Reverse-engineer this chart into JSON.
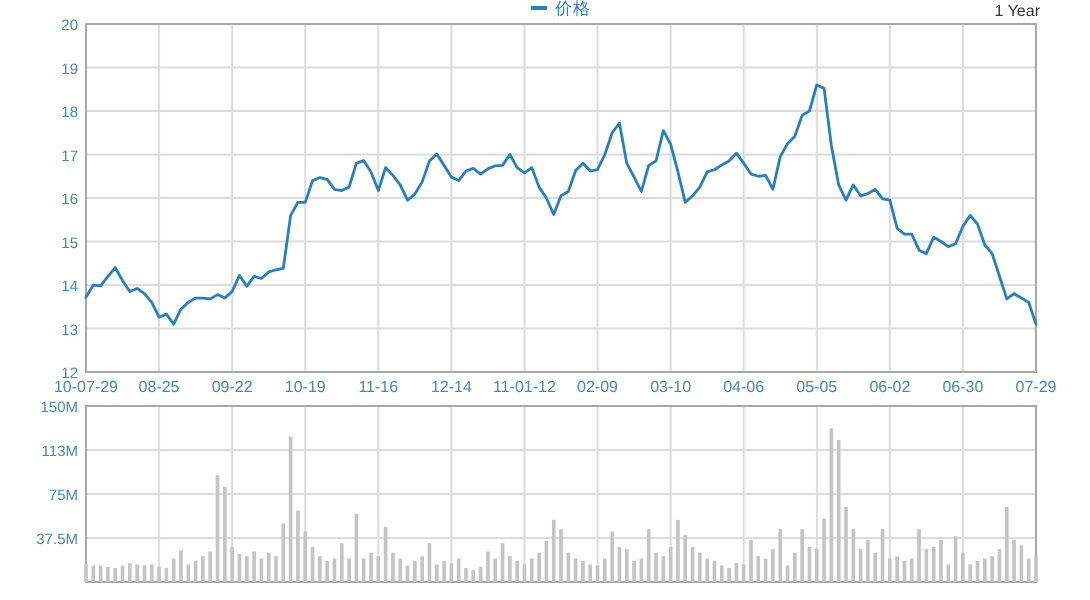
{
  "chart_data": [
    {
      "type": "line",
      "annotations": [
        "1 Year"
      ],
      "legend": "top",
      "grid": true,
      "ylim": [
        12,
        20
      ],
      "yticks": [
        12,
        13,
        14,
        15,
        16,
        17,
        18,
        19,
        20
      ],
      "categories": [
        "10-07-29",
        null,
        null,
        null,
        null,
        null,
        null,
        null,
        null,
        null,
        "08-25",
        null,
        null,
        null,
        null,
        null,
        null,
        null,
        null,
        null,
        "09-22",
        null,
        null,
        null,
        null,
        null,
        null,
        null,
        null,
        null,
        "10-19",
        null,
        null,
        null,
        null,
        null,
        null,
        null,
        null,
        null,
        "11-16",
        null,
        null,
        null,
        null,
        null,
        null,
        null,
        null,
        null,
        "12-14",
        null,
        null,
        null,
        null,
        null,
        null,
        null,
        null,
        null,
        "11-01-12",
        null,
        null,
        null,
        null,
        null,
        null,
        null,
        null,
        null,
        "02-09",
        null,
        null,
        null,
        null,
        null,
        null,
        null,
        null,
        null,
        "03-10",
        null,
        null,
        null,
        null,
        null,
        null,
        null,
        null,
        null,
        "04-06",
        null,
        null,
        null,
        null,
        null,
        null,
        null,
        null,
        null,
        "05-05",
        null,
        null,
        null,
        null,
        null,
        null,
        null,
        null,
        null,
        "06-02",
        null,
        null,
        null,
        null,
        null,
        null,
        null,
        null,
        null,
        "06-30",
        null,
        null,
        null,
        null,
        null,
        null,
        null,
        null,
        null,
        "07-29"
      ],
      "series": [
        {
          "name": "价格",
          "color": "#2b7fb8",
          "values": [
            13.72,
            14.0,
            13.98,
            14.2,
            14.4,
            14.1,
            13.85,
            13.92,
            13.8,
            13.6,
            13.26,
            13.33,
            13.1,
            13.45,
            13.6,
            13.7,
            13.7,
            13.68,
            13.78,
            13.7,
            13.85,
            14.22,
            13.97,
            14.2,
            14.15,
            14.3,
            14.35,
            14.38,
            15.6,
            15.9,
            15.9,
            16.4,
            16.47,
            16.43,
            16.2,
            16.17,
            16.25,
            16.8,
            16.86,
            16.6,
            16.17,
            16.7,
            16.52,
            16.3,
            15.95,
            16.09,
            16.37,
            16.85,
            17.01,
            16.75,
            16.48,
            16.4,
            16.62,
            16.68,
            16.55,
            16.67,
            16.74,
            16.75,
            17.0,
            16.7,
            16.58,
            16.7,
            16.25,
            16.0,
            15.62,
            16.05,
            16.15,
            16.63,
            16.8,
            16.62,
            16.65,
            17.0,
            17.5,
            17.72,
            16.8,
            16.48,
            16.15,
            16.75,
            16.85,
            17.55,
            17.24,
            16.6,
            15.9,
            16.05,
            16.25,
            16.6,
            16.65,
            16.76,
            16.85,
            17.03,
            16.8,
            16.55,
            16.5,
            16.52,
            16.2,
            16.95,
            17.25,
            17.42,
            17.9,
            18.0,
            18.6,
            18.52,
            17.2,
            16.3,
            15.95,
            16.3,
            16.05,
            16.1,
            16.2,
            15.98,
            15.95,
            15.3,
            15.17,
            15.17,
            14.8,
            14.72,
            15.1,
            15.0,
            14.88,
            14.95,
            15.35,
            15.6,
            15.4,
            14.92,
            14.72,
            14.2,
            13.68,
            13.8,
            13.7,
            13.6,
            13.1
          ]
        }
      ]
    },
    {
      "type": "bar",
      "grid": true,
      "tick_labels": "y",
      "ylim": [
        0,
        150
      ],
      "categories": [
        null,
        null,
        null,
        null,
        null,
        null,
        null,
        null,
        null,
        null,
        null,
        null,
        null,
        null,
        null,
        null,
        null,
        null,
        null,
        null,
        null,
        null,
        null,
        null,
        null,
        null,
        null,
        null,
        null,
        null,
        null,
        null,
        null,
        null,
        null,
        null,
        null,
        null,
        null,
        null,
        null,
        null,
        null,
        null,
        null,
        null,
        null,
        null,
        null,
        null,
        null,
        null,
        null,
        null,
        null,
        null,
        null,
        null,
        null,
        null,
        null,
        null,
        null,
        null,
        null,
        null,
        null,
        null,
        null,
        null,
        null,
        null,
        null,
        null,
        null,
        null,
        null,
        null,
        null,
        null,
        null,
        null,
        null,
        null,
        null,
        null,
        null,
        null,
        null,
        null,
        null,
        null,
        null,
        null,
        null,
        null,
        null,
        null,
        null,
        null,
        null,
        null,
        null,
        null,
        null,
        null,
        null,
        null,
        null,
        null,
        null,
        null,
        null,
        null,
        null,
        null,
        null,
        null,
        null,
        null,
        null,
        null,
        null,
        null,
        null,
        null,
        null,
        null,
        null,
        null,
        null
      ],
      "yticks": [
        {
          "value": 37.5,
          "label": "37.5M"
        },
        {
          "value": 75,
          "label": "75M"
        },
        {
          "value": 112.5,
          "label": "113M"
        },
        {
          "value": 150,
          "label": "150M"
        }
      ],
      "series": [
        {
          "color": "#c4c4c4",
          "values": [
            15,
            14,
            14,
            13,
            12,
            14,
            16,
            15,
            14,
            15,
            13,
            12,
            20,
            27,
            15,
            18,
            22,
            26,
            91,
            81,
            30,
            24,
            22,
            26,
            20,
            25,
            22,
            50,
            124,
            61,
            43,
            30,
            22,
            18,
            20,
            33,
            20,
            58,
            20,
            25,
            22,
            47,
            25,
            20,
            14,
            18,
            22,
            33,
            15,
            18,
            16,
            20,
            12,
            10,
            13,
            26,
            20,
            33,
            22,
            18,
            15,
            20,
            25,
            35,
            53,
            45,
            25,
            20,
            18,
            15,
            14,
            20,
            43,
            30,
            28,
            18,
            20,
            45,
            25,
            22,
            30,
            53,
            40,
            30,
            25,
            20,
            18,
            14,
            12,
            16,
            15,
            36,
            22,
            20,
            28,
            45,
            14,
            25,
            45,
            30,
            28,
            54,
            131,
            121,
            64,
            45,
            28,
            36,
            25,
            45,
            20,
            22,
            18,
            20,
            45,
            28,
            30,
            36,
            15,
            39,
            25,
            15,
            18,
            20,
            22,
            28,
            64,
            36,
            31,
            20,
            22
          ]
        }
      ]
    }
  ]
}
